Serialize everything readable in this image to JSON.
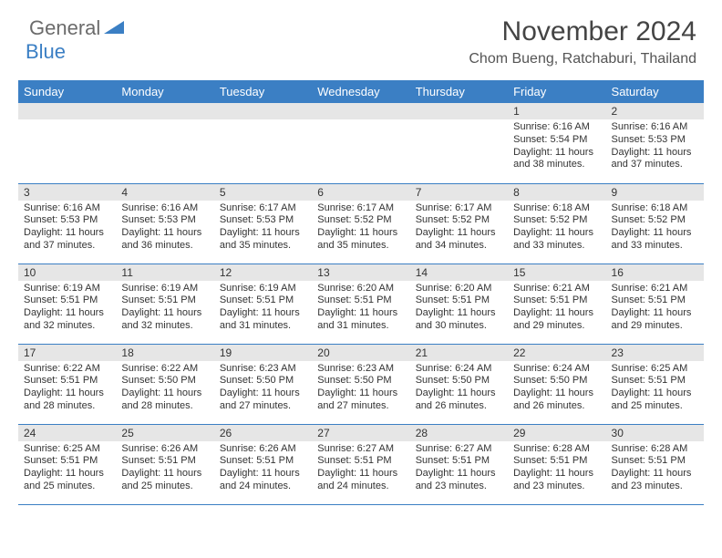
{
  "logo": {
    "text1": "General",
    "text2": "Blue"
  },
  "title": "November 2024",
  "location": "Chom Bueng, Ratchaburi, Thailand",
  "colors": {
    "header_bg": "#3b7fc4",
    "header_text": "#ffffff",
    "daynum_bg": "#e6e6e6",
    "border": "#3b7fc4",
    "body_text": "#333333",
    "logo_gray": "#6b6b6b",
    "logo_blue": "#3b7fc4"
  },
  "weekdays": [
    "Sunday",
    "Monday",
    "Tuesday",
    "Wednesday",
    "Thursday",
    "Friday",
    "Saturday"
  ],
  "weeks": [
    [
      null,
      null,
      null,
      null,
      null,
      {
        "n": "1",
        "sunrise": "6:16 AM",
        "sunset": "5:54 PM",
        "dl_h": "11",
        "dl_m": "38"
      },
      {
        "n": "2",
        "sunrise": "6:16 AM",
        "sunset": "5:53 PM",
        "dl_h": "11",
        "dl_m": "37"
      }
    ],
    [
      {
        "n": "3",
        "sunrise": "6:16 AM",
        "sunset": "5:53 PM",
        "dl_h": "11",
        "dl_m": "37"
      },
      {
        "n": "4",
        "sunrise": "6:16 AM",
        "sunset": "5:53 PM",
        "dl_h": "11",
        "dl_m": "36"
      },
      {
        "n": "5",
        "sunrise": "6:17 AM",
        "sunset": "5:53 PM",
        "dl_h": "11",
        "dl_m": "35"
      },
      {
        "n": "6",
        "sunrise": "6:17 AM",
        "sunset": "5:52 PM",
        "dl_h": "11",
        "dl_m": "35"
      },
      {
        "n": "7",
        "sunrise": "6:17 AM",
        "sunset": "5:52 PM",
        "dl_h": "11",
        "dl_m": "34"
      },
      {
        "n": "8",
        "sunrise": "6:18 AM",
        "sunset": "5:52 PM",
        "dl_h": "11",
        "dl_m": "33"
      },
      {
        "n": "9",
        "sunrise": "6:18 AM",
        "sunset": "5:52 PM",
        "dl_h": "11",
        "dl_m": "33"
      }
    ],
    [
      {
        "n": "10",
        "sunrise": "6:19 AM",
        "sunset": "5:51 PM",
        "dl_h": "11",
        "dl_m": "32"
      },
      {
        "n": "11",
        "sunrise": "6:19 AM",
        "sunset": "5:51 PM",
        "dl_h": "11",
        "dl_m": "32"
      },
      {
        "n": "12",
        "sunrise": "6:19 AM",
        "sunset": "5:51 PM",
        "dl_h": "11",
        "dl_m": "31"
      },
      {
        "n": "13",
        "sunrise": "6:20 AM",
        "sunset": "5:51 PM",
        "dl_h": "11",
        "dl_m": "31"
      },
      {
        "n": "14",
        "sunrise": "6:20 AM",
        "sunset": "5:51 PM",
        "dl_h": "11",
        "dl_m": "30"
      },
      {
        "n": "15",
        "sunrise": "6:21 AM",
        "sunset": "5:51 PM",
        "dl_h": "11",
        "dl_m": "29"
      },
      {
        "n": "16",
        "sunrise": "6:21 AM",
        "sunset": "5:51 PM",
        "dl_h": "11",
        "dl_m": "29"
      }
    ],
    [
      {
        "n": "17",
        "sunrise": "6:22 AM",
        "sunset": "5:51 PM",
        "dl_h": "11",
        "dl_m": "28"
      },
      {
        "n": "18",
        "sunrise": "6:22 AM",
        "sunset": "5:50 PM",
        "dl_h": "11",
        "dl_m": "28"
      },
      {
        "n": "19",
        "sunrise": "6:23 AM",
        "sunset": "5:50 PM",
        "dl_h": "11",
        "dl_m": "27"
      },
      {
        "n": "20",
        "sunrise": "6:23 AM",
        "sunset": "5:50 PM",
        "dl_h": "11",
        "dl_m": "27"
      },
      {
        "n": "21",
        "sunrise": "6:24 AM",
        "sunset": "5:50 PM",
        "dl_h": "11",
        "dl_m": "26"
      },
      {
        "n": "22",
        "sunrise": "6:24 AM",
        "sunset": "5:50 PM",
        "dl_h": "11",
        "dl_m": "26"
      },
      {
        "n": "23",
        "sunrise": "6:25 AM",
        "sunset": "5:51 PM",
        "dl_h": "11",
        "dl_m": "25"
      }
    ],
    [
      {
        "n": "24",
        "sunrise": "6:25 AM",
        "sunset": "5:51 PM",
        "dl_h": "11",
        "dl_m": "25"
      },
      {
        "n": "25",
        "sunrise": "6:26 AM",
        "sunset": "5:51 PM",
        "dl_h": "11",
        "dl_m": "25"
      },
      {
        "n": "26",
        "sunrise": "6:26 AM",
        "sunset": "5:51 PM",
        "dl_h": "11",
        "dl_m": "24"
      },
      {
        "n": "27",
        "sunrise": "6:27 AM",
        "sunset": "5:51 PM",
        "dl_h": "11",
        "dl_m": "24"
      },
      {
        "n": "28",
        "sunrise": "6:27 AM",
        "sunset": "5:51 PM",
        "dl_h": "11",
        "dl_m": "23"
      },
      {
        "n": "29",
        "sunrise": "6:28 AM",
        "sunset": "5:51 PM",
        "dl_h": "11",
        "dl_m": "23"
      },
      {
        "n": "30",
        "sunrise": "6:28 AM",
        "sunset": "5:51 PM",
        "dl_h": "11",
        "dl_m": "23"
      }
    ]
  ],
  "labels": {
    "sunrise": "Sunrise:",
    "sunset": "Sunset:",
    "daylight_prefix": "Daylight:",
    "hours_word": "hours",
    "and_word": "and",
    "minutes_word": "minutes."
  }
}
